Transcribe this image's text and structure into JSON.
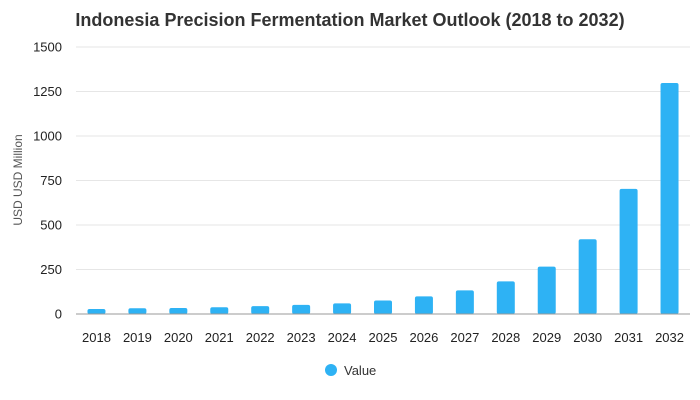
{
  "chart_data": {
    "type": "bar",
    "title": "Indonesia Precision Fermentation Market Outlook (2018 to 2032)",
    "xlabel": "",
    "ylabel": "USD USD Million",
    "categories": [
      "2018",
      "2019",
      "2020",
      "2021",
      "2022",
      "2023",
      "2024",
      "2025",
      "2026",
      "2027",
      "2028",
      "2029",
      "2030",
      "2031",
      "2032"
    ],
    "series": [
      {
        "name": "Value",
        "values": [
          28,
          32,
          34,
          38,
          44,
          51,
          60,
          76,
          99,
          133,
          183,
          266,
          420,
          703,
          1298
        ]
      }
    ],
    "ylim": [
      0,
      1500
    ],
    "yticks": [
      0,
      250,
      500,
      750,
      1000,
      1250,
      1500
    ],
    "grid": true,
    "legend_position": "bottom-center",
    "colors": {
      "bar": "#2eb2f4",
      "grid": "#e6e6e6",
      "baseline": "#999999"
    }
  }
}
